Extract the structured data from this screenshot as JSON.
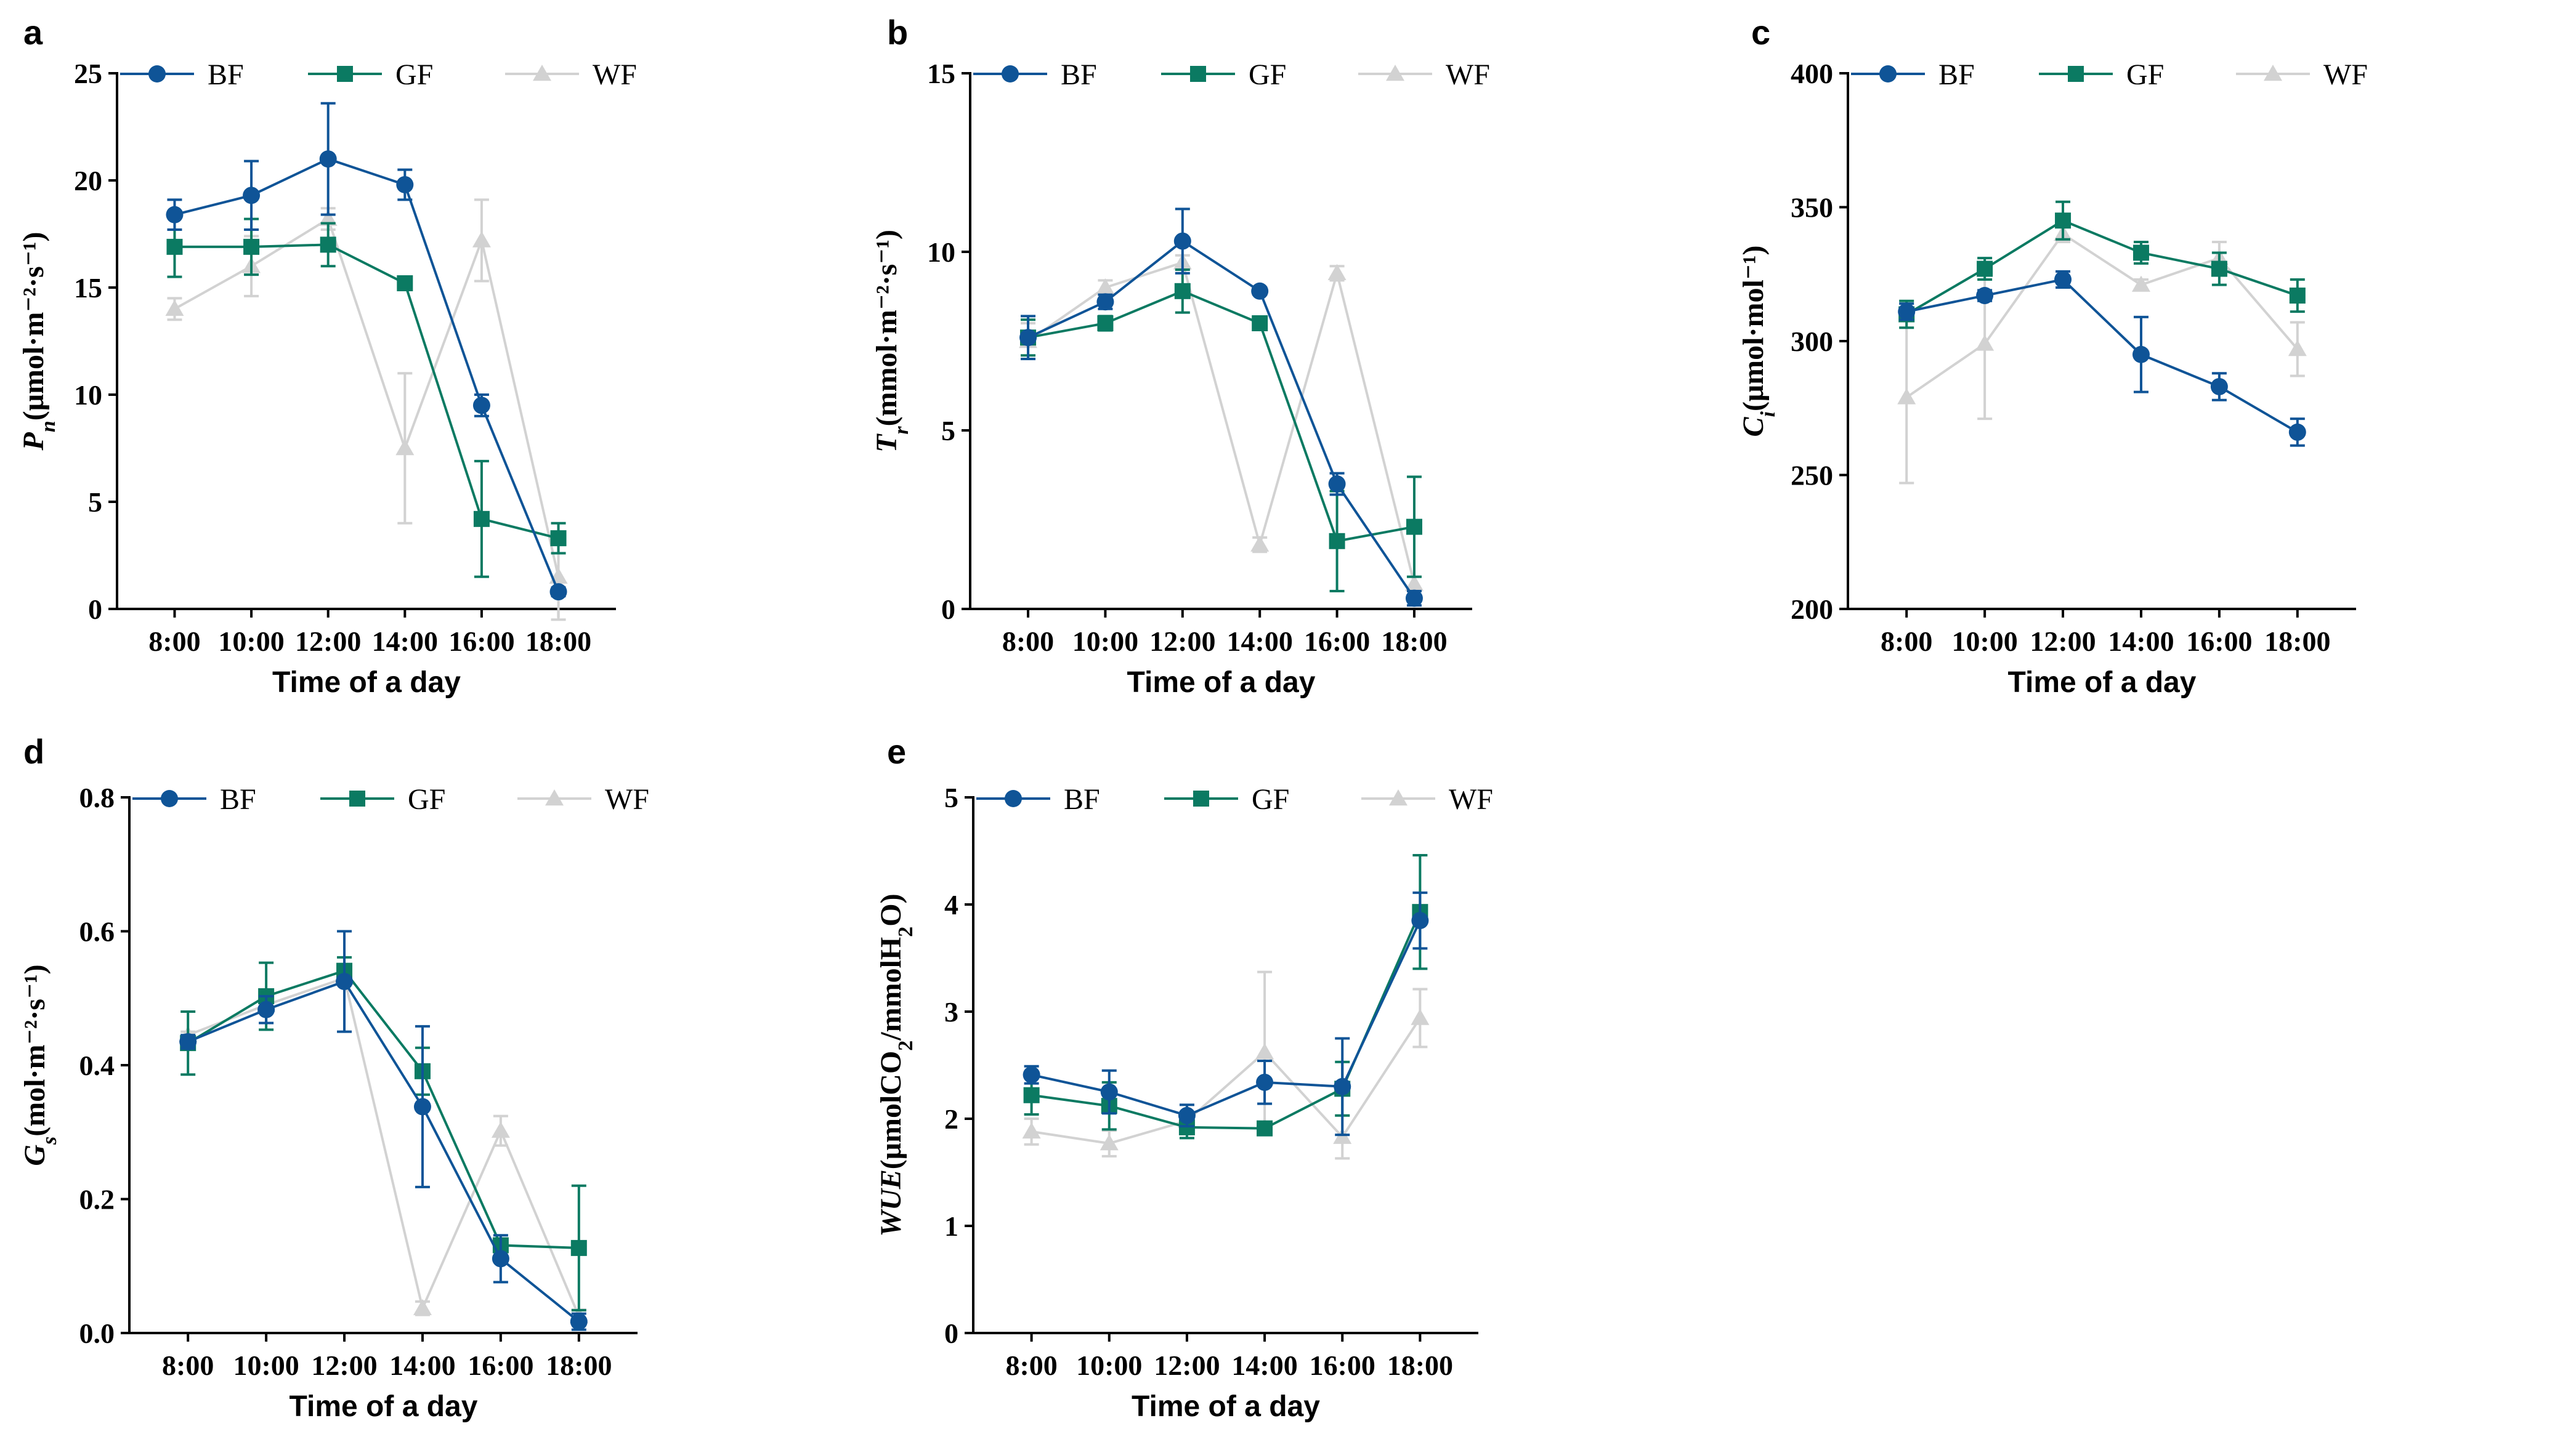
{
  "legend": [
    "BF",
    "GF",
    "WF"
  ],
  "series_colors": {
    "BF": "#0f5497",
    "GF": "#0b7a62",
    "WF": "#d2d2d2"
  },
  "chart_data": [
    {
      "panel": "a",
      "type": "line",
      "categories": [
        "8:00",
        "10:00",
        "12:00",
        "14:00",
        "16:00",
        "18:00"
      ],
      "xlabel": "Time of a day",
      "ylabel": {
        "symbol": "P",
        "sub": "n",
        "unit": "(μmol·m⁻²·s⁻¹)"
      },
      "ylim": [
        0,
        25
      ],
      "yticks": [
        0,
        5,
        10,
        15,
        20,
        25
      ],
      "series": [
        {
          "name": "BF",
          "marker": "circle",
          "values": [
            18.4,
            19.3,
            21.0,
            19.8,
            9.5,
            0.8
          ],
          "errors": [
            0.7,
            1.6,
            2.6,
            0.7,
            0.5,
            0.2
          ]
        },
        {
          "name": "GF",
          "marker": "square",
          "values": [
            16.9,
            16.9,
            17.0,
            15.2,
            4.2,
            3.3
          ],
          "errors": [
            1.4,
            1.3,
            1.0,
            0.3,
            2.7,
            0.7
          ]
        },
        {
          "name": "WF",
          "marker": "triangle",
          "values": [
            14.0,
            16.0,
            18.2,
            7.5,
            17.2,
            1.5
          ],
          "errors": [
            0.5,
            1.4,
            0.5,
            3.5,
            1.9,
            2.0
          ]
        }
      ]
    },
    {
      "panel": "b",
      "type": "line",
      "categories": [
        "8:00",
        "10:00",
        "12:00",
        "14:00",
        "16:00",
        "18:00"
      ],
      "xlabel": "Time of a day",
      "ylabel": {
        "symbol": "T",
        "sub": "r",
        "unit": "(mmol·m⁻²·s⁻¹)"
      },
      "ylim": [
        0,
        15
      ],
      "yticks": [
        0,
        5,
        10,
        15
      ],
      "series": [
        {
          "name": "BF",
          "marker": "circle",
          "values": [
            7.6,
            8.6,
            10.3,
            8.9,
            3.5,
            0.3
          ],
          "errors": [
            0.6,
            0.2,
            0.9,
            0.1,
            0.3,
            0.2
          ]
        },
        {
          "name": "GF",
          "marker": "square",
          "values": [
            7.6,
            8.0,
            8.9,
            8.0,
            1.9,
            2.3
          ],
          "errors": [
            0.5,
            0.2,
            0.6,
            0.1,
            1.4,
            1.4
          ]
        },
        {
          "name": "WF",
          "marker": "triangle",
          "values": [
            7.5,
            9.0,
            9.7,
            1.8,
            9.4,
            0.7
          ],
          "errors": [
            0.5,
            0.2,
            0.2,
            0.2,
            0.2,
            0.2
          ]
        }
      ]
    },
    {
      "panel": "c",
      "type": "line",
      "categories": [
        "8:00",
        "10:00",
        "12:00",
        "14:00",
        "16:00",
        "18:00"
      ],
      "xlabel": "Time of a day",
      "ylabel": {
        "symbol": "C",
        "sub": "i",
        "unit": "(μmol·mol⁻¹)"
      },
      "ylim": [
        200,
        400
      ],
      "yticks": [
        200,
        250,
        300,
        350,
        400
      ],
      "series": [
        {
          "name": "BF",
          "marker": "circle",
          "values": [
            311,
            317,
            323,
            295,
            283,
            266
          ],
          "errors": [
            3,
            2,
            3,
            14,
            5,
            5
          ]
        },
        {
          "name": "GF",
          "marker": "square",
          "values": [
            310,
            327,
            345,
            333,
            327,
            317
          ],
          "errors": [
            5,
            4,
            7,
            4,
            6,
            6
          ]
        },
        {
          "name": "WF",
          "marker": "triangle",
          "values": [
            279,
            299,
            340,
            321,
            331,
            297
          ],
          "errors": [
            32,
            28,
            3,
            2,
            6,
            10
          ]
        }
      ]
    },
    {
      "panel": "d",
      "type": "line",
      "categories": [
        "8:00",
        "10:00",
        "12:00",
        "14:00",
        "16:00",
        "18:00"
      ],
      "xlabel": "Time of a day",
      "ylabel": {
        "symbol": "G",
        "sub": "s",
        "unit": "(mol·m⁻²·s⁻¹)"
      },
      "ylim": [
        0,
        0.8
      ],
      "yticks": [
        0.0,
        0.2,
        0.4,
        0.6,
        0.8
      ],
      "series": [
        {
          "name": "BF",
          "marker": "circle",
          "values": [
            0.435,
            0.483,
            0.525,
            0.338,
            0.111,
            0.017
          ],
          "errors": [
            0.01,
            0.02,
            0.075,
            0.12,
            0.035,
            0.012
          ]
        },
        {
          "name": "GF",
          "marker": "square",
          "values": [
            0.433,
            0.503,
            0.541,
            0.391,
            0.131,
            0.127
          ],
          "errors": [
            0.047,
            0.05,
            0.02,
            0.035,
            0.01,
            0.093
          ]
        },
        {
          "name": "WF",
          "marker": "triangle",
          "values": [
            0.445,
            0.49,
            0.53,
            0.037,
            0.302,
            0.025
          ],
          "errors": [
            0.005,
            0.01,
            0.01,
            0.01,
            0.022,
            0.01
          ]
        }
      ]
    },
    {
      "panel": "e",
      "type": "line",
      "categories": [
        "8:00",
        "10:00",
        "12:00",
        "14:00",
        "16:00",
        "18:00"
      ],
      "xlabel": "Time of a day",
      "ylabel": {
        "symbol": "WUE",
        "unit": "(μmolCO",
        "sub": "2",
        "unit2": "/mmolH",
        "sub2": "2",
        "unit3": "O)"
      },
      "ylim": [
        0,
        5
      ],
      "yticks": [
        0,
        1,
        2,
        3,
        4,
        5
      ],
      "series": [
        {
          "name": "BF",
          "marker": "circle",
          "values": [
            2.41,
            2.25,
            2.03,
            2.34,
            2.3,
            3.85
          ],
          "errors": [
            0.08,
            0.2,
            0.1,
            0.2,
            0.45,
            0.26
          ]
        },
        {
          "name": "GF",
          "marker": "square",
          "values": [
            2.22,
            2.12,
            1.92,
            1.91,
            2.28,
            3.93
          ],
          "errors": [
            0.18,
            0.22,
            0.1,
            0.02,
            0.25,
            0.53
          ]
        },
        {
          "name": "WF",
          "marker": "triangle",
          "values": [
            1.88,
            1.77,
            1.98,
            2.62,
            1.83,
            2.94
          ],
          "errors": [
            0.12,
            0.12,
            0.05,
            0.75,
            0.2,
            0.27
          ]
        }
      ]
    }
  ]
}
